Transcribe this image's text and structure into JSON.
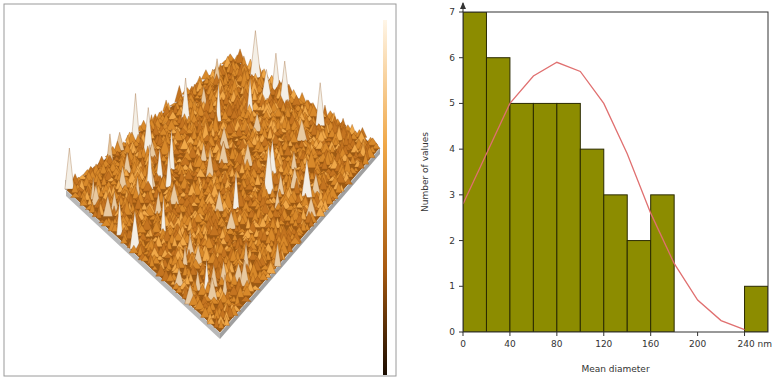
{
  "chart_data": {
    "type": "histogram",
    "x_label": "Mean diameter",
    "y_label": "Number of values",
    "bins": [
      0,
      20,
      40,
      60,
      80,
      100,
      120,
      140,
      160,
      180,
      200,
      220,
      240,
      260
    ],
    "values": [
      7,
      6,
      5,
      5,
      5,
      4,
      3,
      2,
      3,
      0,
      0,
      0,
      1
    ],
    "color": "#8c8c00",
    "xlim": [
      0,
      260
    ],
    "ylim": [
      0,
      7
    ],
    "xticks": [
      0,
      40,
      80,
      120,
      160,
      200,
      {
        "value": 240,
        "label": "240 nm"
      }
    ],
    "yticks": [
      0,
      1,
      2,
      3,
      4,
      5,
      6,
      7
    ],
    "series": [
      {
        "type": "line",
        "color": "#e07070",
        "x": [
          0,
          20,
          40,
          60,
          80,
          100,
          120,
          140,
          160,
          180,
          200,
          220,
          240
        ],
        "values": [
          2.8,
          3.9,
          5.0,
          5.6,
          5.9,
          5.7,
          5.0,
          3.9,
          2.6,
          1.5,
          0.7,
          0.25,
          0.05
        ]
      }
    ]
  }
}
